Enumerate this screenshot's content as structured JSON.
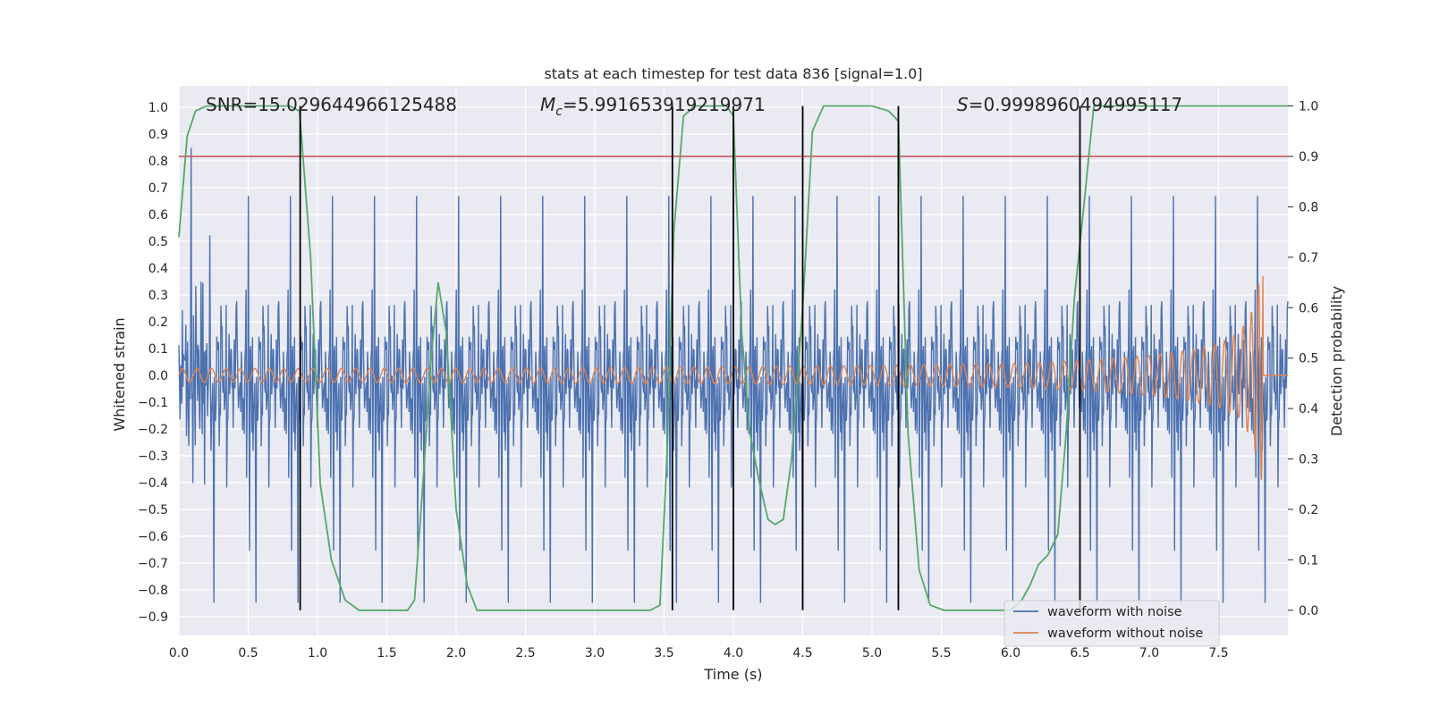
{
  "chart_data": {
    "type": "line",
    "title": "stats at each timestep for test data 836 [signal=1.0]",
    "xlabel": "Time (s)",
    "ylabel": "Whitened strain",
    "y2label": "Detection probability",
    "xlim": [
      0,
      8
    ],
    "ylim": [
      -0.97,
      1.08
    ],
    "y2lim": [
      -0.05,
      1.04
    ],
    "x_ticks": [
      0.0,
      0.5,
      1.0,
      1.5,
      2.0,
      2.5,
      3.0,
      3.5,
      4.0,
      4.5,
      5.0,
      5.5,
      6.0,
      6.5,
      7.0,
      7.5
    ],
    "x_tick_labels": [
      "0.0",
      "0.5",
      "1.0",
      "1.5",
      "2.0",
      "2.5",
      "3.0",
      "3.5",
      "4.0",
      "4.5",
      "5.0",
      "5.5",
      "6.0",
      "6.5",
      "7.0",
      "7.5"
    ],
    "y_ticks": [
      1.0,
      0.9,
      0.8,
      0.7,
      0.6,
      0.5,
      0.4,
      0.3,
      0.2,
      0.1,
      0.0,
      -0.1,
      -0.2,
      -0.3,
      -0.4,
      -0.5,
      -0.6,
      -0.7,
      -0.8,
      -0.9
    ],
    "y_tick_labels": [
      "1.0",
      "0.9",
      "0.8",
      "0.7",
      "0.6",
      "0.5",
      "0.4",
      "0.3",
      "0.2",
      "0.1",
      "0.0",
      "−0.1",
      "−0.2",
      "−0.3",
      "−0.4",
      "−0.5",
      "−0.6",
      "−0.7",
      "−0.8",
      "−0.9"
    ],
    "y2_ticks": [
      1.0,
      0.9,
      0.8,
      0.7,
      0.6,
      0.5,
      0.4,
      0.3,
      0.2,
      0.1,
      0.0
    ],
    "y2_tick_labels": [
      "1.0",
      "0.9",
      "0.8",
      "0.7",
      "0.6",
      "0.5",
      "0.4",
      "0.3",
      "0.2",
      "0.1",
      "0.0"
    ],
    "annotations": {
      "snr": "SNR=15.029644966125488",
      "mc_symbol": "M",
      "mc_sub": "c",
      "mc_value": "=5.991653919219971",
      "s_symbol": "S",
      "s_value": "=0.9998960494995117"
    },
    "threshold_line": {
      "axis": "y2",
      "value": 0.9,
      "color": "#c44e52"
    },
    "vertical_lines": [
      {
        "x": 0.875,
        "y2_bottom": 0.0,
        "y2_top": 1.0
      },
      {
        "x": 3.56,
        "y2_bottom": 0.0,
        "y2_top": 1.0
      },
      {
        "x": 4.0,
        "y2_bottom": 0.0,
        "y2_top": 1.0
      },
      {
        "x": 4.5,
        "y2_bottom": 0.0,
        "y2_top": 1.0
      },
      {
        "x": 5.19,
        "y2_bottom": 0.0,
        "y2_top": 1.0
      },
      {
        "x": 6.5,
        "y2_bottom": 0.0,
        "y2_top": 1.0
      }
    ],
    "series": [
      {
        "name": "waveform with noise",
        "axis": "y",
        "color": "#4c72b0",
        "kind": "noise",
        "x_range": [
          0,
          8
        ],
        "n_points": 1900,
        "core_amplitude": 0.3,
        "peak_amplitude": 0.85
      },
      {
        "name": "waveform without noise",
        "axis": "y",
        "color": "#dd8452",
        "kind": "chirp",
        "x_range": [
          0,
          8
        ],
        "merger_time": 7.82,
        "envelope_x": [
          0.0,
          1.0,
          2.0,
          3.0,
          4.0,
          5.0,
          6.0,
          6.5,
          7.0,
          7.3,
          7.5,
          7.65,
          7.75,
          7.82
        ],
        "envelope_y": [
          0.025,
          0.026,
          0.027,
          0.029,
          0.032,
          0.037,
          0.045,
          0.055,
          0.075,
          0.095,
          0.12,
          0.16,
          0.25,
          0.43
        ]
      },
      {
        "name": "detection probability",
        "axis": "y2",
        "color": "#55a868",
        "x": [
          0.0,
          0.06,
          0.12,
          0.2,
          0.35,
          0.5,
          0.7,
          0.8,
          0.87,
          0.95,
          1.02,
          1.1,
          1.2,
          1.3,
          1.5,
          1.65,
          1.7,
          1.76,
          1.82,
          1.87,
          1.93,
          2.0,
          2.08,
          2.15,
          2.3,
          2.6,
          3.0,
          3.4,
          3.47,
          3.52,
          3.57,
          3.64,
          3.72,
          3.8,
          3.95,
          4.0,
          4.06,
          4.12,
          4.19,
          4.25,
          4.3,
          4.36,
          4.42,
          4.5,
          4.57,
          4.65,
          4.75,
          5.0,
          5.12,
          5.19,
          5.26,
          5.34,
          5.42,
          5.52,
          5.65,
          6.0,
          6.08,
          6.14,
          6.2,
          6.27,
          6.34,
          6.4,
          6.46,
          6.52,
          6.6,
          6.75,
          7.0,
          7.5,
          8.0
        ],
        "y": [
          0.74,
          0.94,
          0.99,
          1.0,
          1.0,
          1.0,
          1.0,
          1.0,
          0.99,
          0.7,
          0.25,
          0.1,
          0.02,
          0.0,
          0.0,
          0.0,
          0.02,
          0.25,
          0.5,
          0.65,
          0.55,
          0.2,
          0.05,
          0.0,
          0.0,
          0.0,
          0.0,
          0.0,
          0.01,
          0.3,
          0.75,
          0.98,
          1.0,
          1.0,
          1.0,
          0.98,
          0.55,
          0.35,
          0.25,
          0.18,
          0.17,
          0.18,
          0.3,
          0.6,
          0.95,
          1.0,
          1.0,
          1.0,
          0.99,
          0.97,
          0.35,
          0.08,
          0.01,
          0.0,
          0.0,
          0.0,
          0.02,
          0.05,
          0.09,
          0.11,
          0.15,
          0.35,
          0.62,
          0.78,
          1.0,
          1.0,
          1.0,
          1.0,
          1.0
        ]
      }
    ],
    "legend": {
      "position": "lower-right",
      "entries": [
        {
          "label": "waveform with noise",
          "color": "#4c72b0"
        },
        {
          "label": "waveform without noise",
          "color": "#dd8452"
        }
      ]
    },
    "style": {
      "background": "#eaeaf2",
      "grid": "#ffffff",
      "vline": "#000000"
    }
  }
}
